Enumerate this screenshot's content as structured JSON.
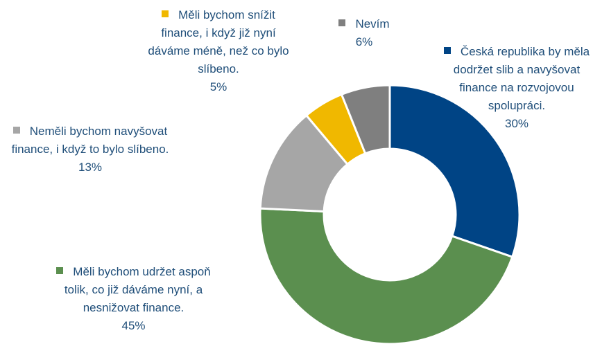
{
  "chart_data": {
    "type": "donut",
    "categories": [
      "Česká republika by měla dodržet slib a navyšovat finance na rozvojovou spolupráci.",
      "Měli bychom udržet aspoň tolik, co již dáváme nyní, a nesnižovat finance.",
      "Neměli bychom navyšovat finance, i když to bylo slíbeno.",
      "Měli bychom snížit finance, i když již nyní dáváme méně, než co bylo slíbeno.",
      "Nevím"
    ],
    "values": [
      30,
      45,
      13,
      5,
      6
    ],
    "value_labels": [
      "30%",
      "45%",
      "13%",
      "5%",
      "6%"
    ],
    "colors": [
      "#004485",
      "#5b8f4f",
      "#a6a6a6",
      "#f0b800",
      "#7f7f7f"
    ]
  }
}
